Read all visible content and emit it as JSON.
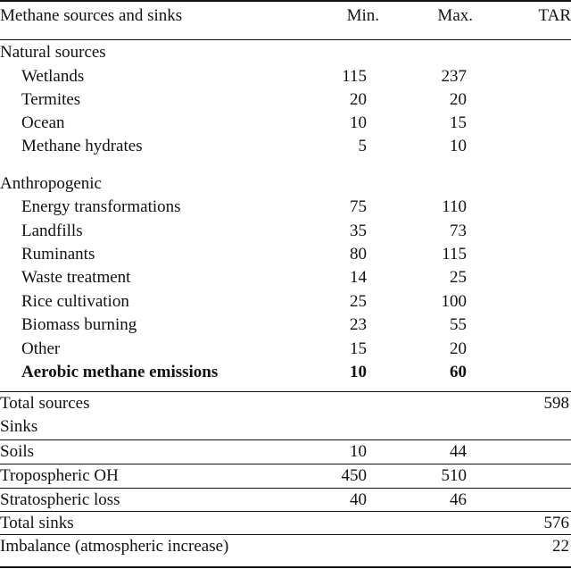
{
  "table": {
    "headers": {
      "label": "Methane sources and sinks",
      "min": "Min.",
      "max": "Max.",
      "tar": "TAR"
    },
    "rows": [
      {
        "label": "Natural sources",
        "min": "",
        "max": "",
        "tar": "",
        "indent": false,
        "bold": false
      },
      {
        "label": "Wetlands",
        "min": "115",
        "max": "237",
        "tar": "",
        "indent": true,
        "bold": false
      },
      {
        "label": "Termites",
        "min": "20",
        "max": "20",
        "tar": "",
        "indent": true,
        "bold": false
      },
      {
        "label": "Ocean",
        "min": "10",
        "max": "15",
        "tar": "",
        "indent": true,
        "bold": false
      },
      {
        "label": "Methane hydrates",
        "min": "5",
        "max": "10",
        "tar": "",
        "indent": true,
        "bold": false
      },
      {
        "label": "Anthropogenic",
        "min": "",
        "max": "",
        "tar": "",
        "indent": false,
        "bold": false
      },
      {
        "label": "Energy transformations",
        "min": "75",
        "max": "110",
        "tar": "",
        "indent": true,
        "bold": false
      },
      {
        "label": "Landfills",
        "min": "35",
        "max": "73",
        "tar": "",
        "indent": true,
        "bold": false
      },
      {
        "label": "Ruminants",
        "min": "80",
        "max": "115",
        "tar": "",
        "indent": true,
        "bold": false
      },
      {
        "label": "Waste treatment",
        "min": "14",
        "max": "25",
        "tar": "",
        "indent": true,
        "bold": false
      },
      {
        "label": "Rice cultivation",
        "min": "25",
        "max": "100",
        "tar": "",
        "indent": true,
        "bold": false
      },
      {
        "label": "Biomass burning",
        "min": "23",
        "max": "55",
        "tar": "",
        "indent": true,
        "bold": false
      },
      {
        "label": "Other",
        "min": "15",
        "max": "20",
        "tar": "",
        "indent": true,
        "bold": false
      },
      {
        "label": "Aerobic methane emissions",
        "min": "10",
        "max": "60",
        "tar": "",
        "indent": true,
        "bold": true
      },
      {
        "label": "Total sources",
        "min": "",
        "max": "",
        "tar": "598",
        "indent": false,
        "bold": false,
        "rule": true
      },
      {
        "label": "Sinks",
        "min": "",
        "max": "",
        "tar": "",
        "indent": false,
        "bold": false
      },
      {
        "label": "Soils",
        "min": "10",
        "max": "44",
        "tar": "",
        "indent": false,
        "bold": false,
        "rule": true
      },
      {
        "label": "Tropospheric OH",
        "min": "450",
        "max": "510",
        "tar": "",
        "indent": false,
        "bold": false,
        "rule": true
      },
      {
        "label": "Stratospheric loss",
        "min": "40",
        "max": "46",
        "tar": "",
        "indent": false,
        "bold": false,
        "rule": true
      },
      {
        "label": "Total sinks",
        "min": "",
        "max": "",
        "tar": "576",
        "indent": false,
        "bold": false,
        "rule": true
      },
      {
        "label": "Imbalance (atmospheric increase)",
        "min": "",
        "max": "",
        "tar": "22",
        "indent": false,
        "bold": false,
        "rule": true
      }
    ]
  }
}
